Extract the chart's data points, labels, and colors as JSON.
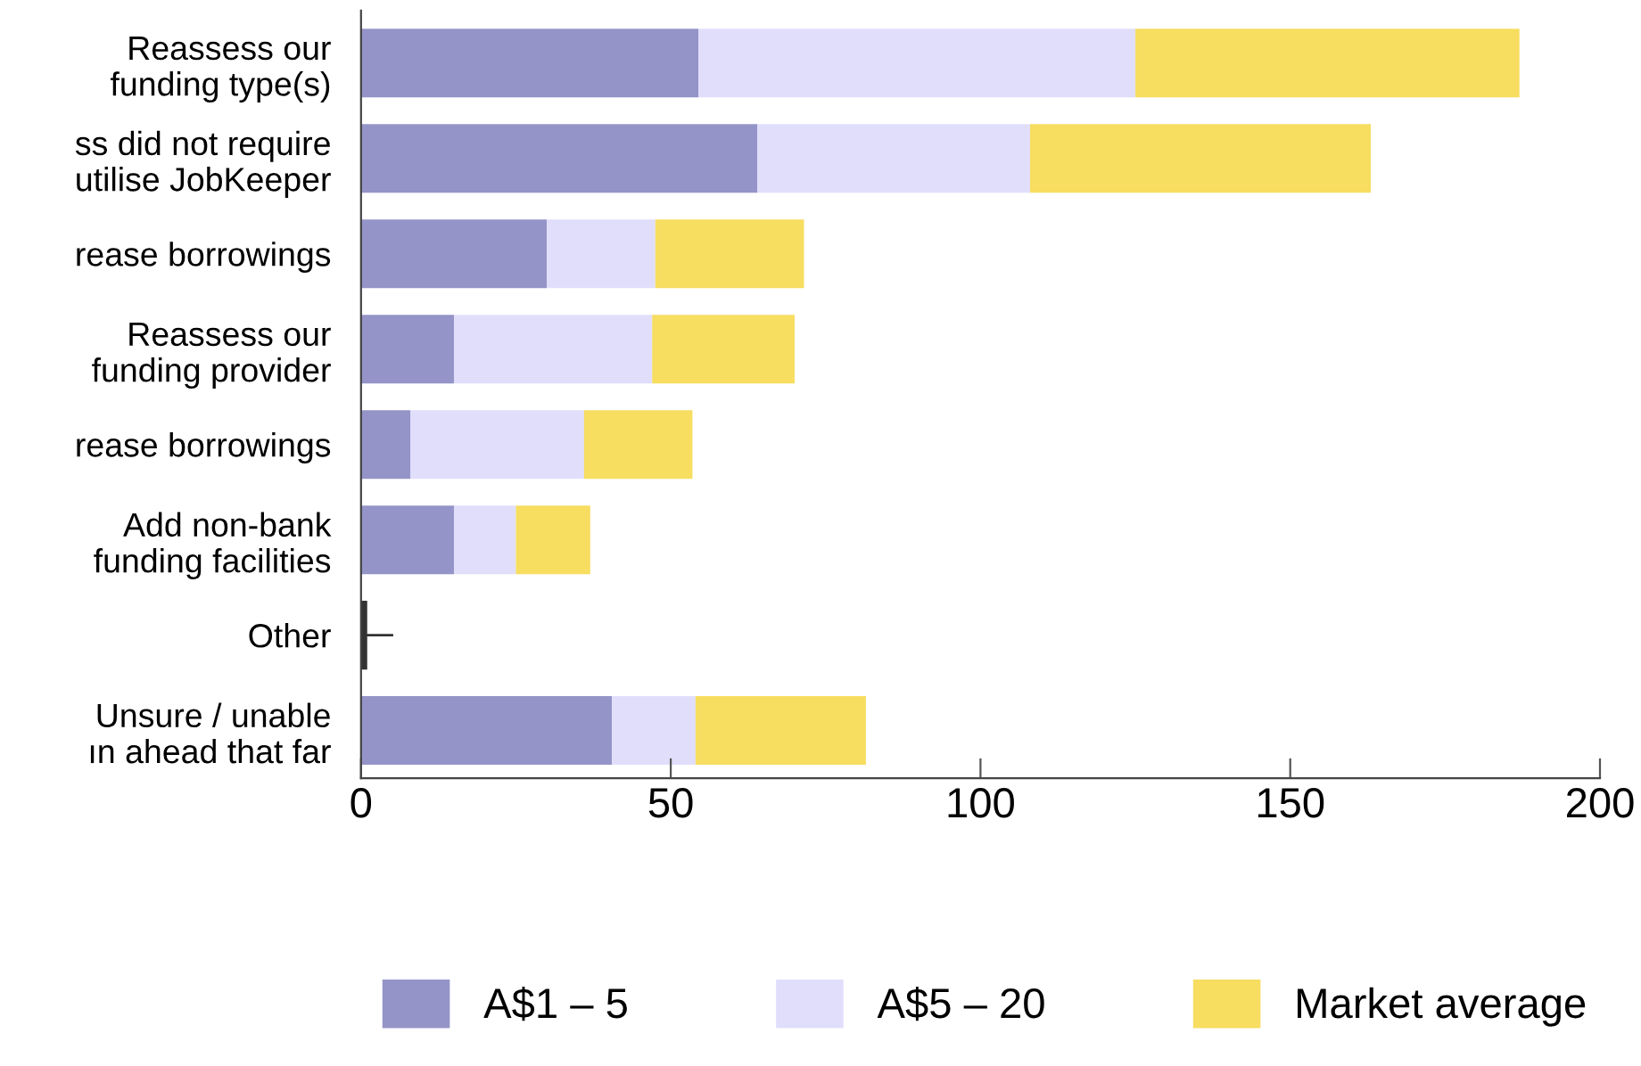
{
  "chart_data": {
    "type": "bar",
    "orientation": "horizontal",
    "stacked": true,
    "categories": [
      "Reassess our\nfunding type(s)",
      "ss did not require\nutilise JobKeeper",
      "rease borrowings",
      "Reassess our\nfunding provider",
      "rease borrowings",
      "Add non-bank\nfunding facilities",
      "Other",
      "Unsure / unable\nın ahead that far"
    ],
    "series": [
      {
        "name": "A$1 – 5",
        "color": "#9494c8",
        "values": [
          54.5,
          64,
          30,
          15,
          8,
          15,
          null,
          40.5
        ]
      },
      {
        "name": "A$5 – 20",
        "color": "#e1defc",
        "values": [
          70.5,
          44,
          17.5,
          32,
          28,
          10,
          null,
          13.5
        ]
      },
      {
        "name": "Market average",
        "color": "#f7dd60",
        "values": [
          62,
          55,
          24,
          23,
          17.5,
          12,
          null,
          27.5
        ]
      },
      {
        "color": "#333333",
        "values": [
          null,
          null,
          null,
          null,
          null,
          null,
          1,
          null
        ],
        "errors": [
          null,
          null,
          null,
          null,
          null,
          null,
          [
            1,
            5
          ],
          null
        ]
      }
    ],
    "xlim": [
      0,
      200
    ],
    "xticks": [
      0,
      50,
      100,
      150,
      200
    ],
    "grid": false,
    "legend": "bottom"
  }
}
